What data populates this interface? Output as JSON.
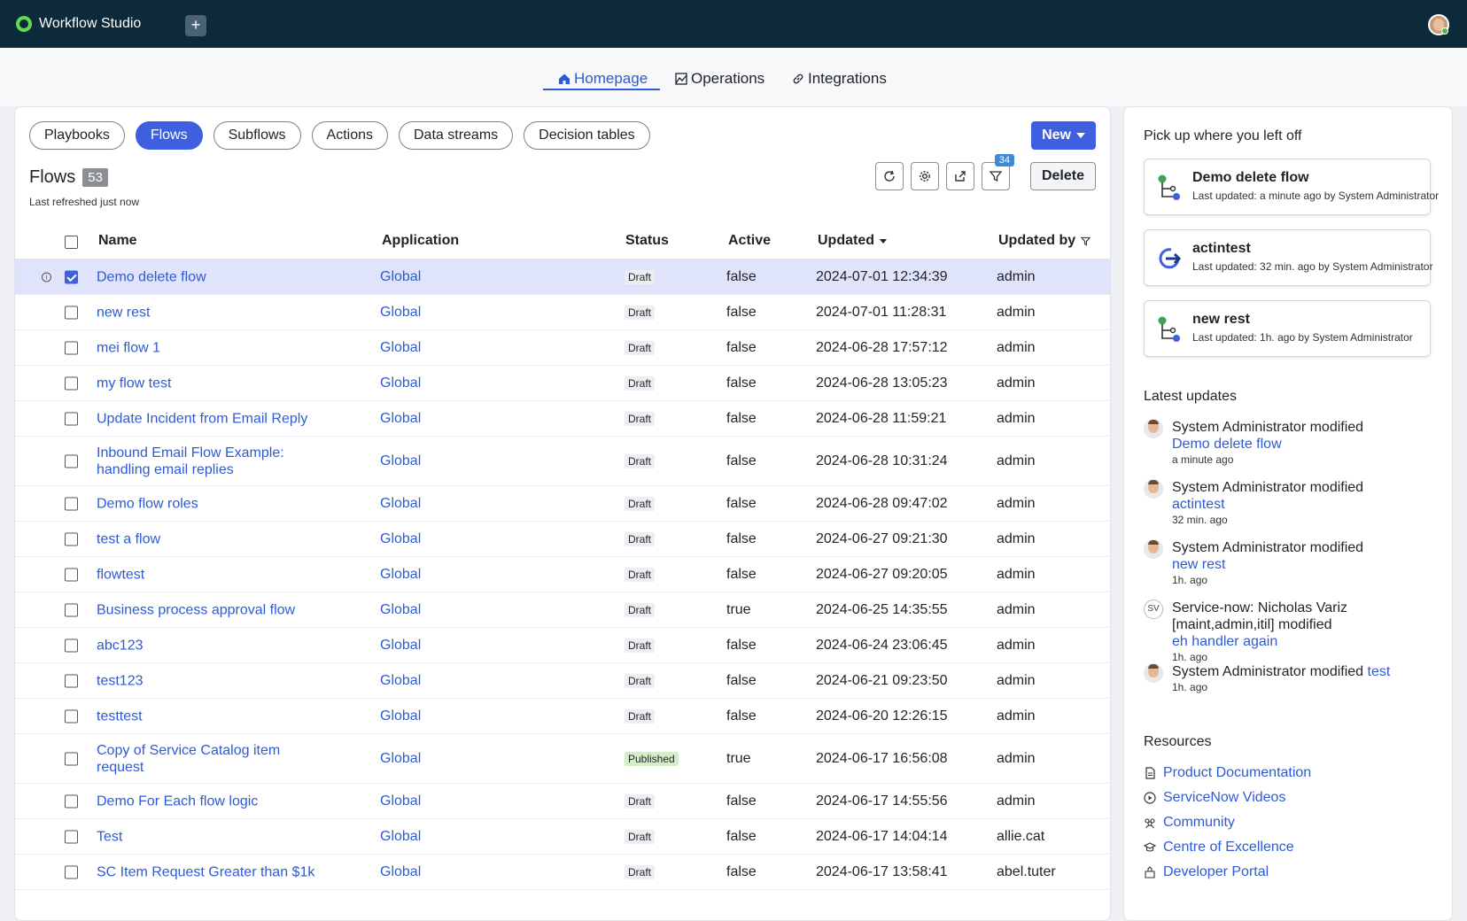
{
  "app": {
    "title": "Workflow Studio",
    "add_tab_label": "+"
  },
  "nav": {
    "tabs": [
      "Homepage",
      "Operations",
      "Integrations"
    ]
  },
  "pills": [
    "Playbooks",
    "Flows",
    "Subflows",
    "Actions",
    "Data streams",
    "Decision tables"
  ],
  "new_button_label": "New",
  "list": {
    "title": "Flows",
    "count": "53",
    "refreshed": "Last refreshed just now",
    "filter_count": "34",
    "delete_label": "Delete"
  },
  "columns": {
    "name": "Name",
    "application": "Application",
    "status": "Status",
    "active": "Active",
    "updated": "Updated",
    "updated_by": "Updated by"
  },
  "rows": [
    {
      "name": "Demo delete flow",
      "application": "Global",
      "status": "Draft",
      "active": "false",
      "updated": "2024-07-01 12:34:39",
      "updated_by": "admin"
    },
    {
      "name": "new rest",
      "application": "Global",
      "status": "Draft",
      "active": "false",
      "updated": "2024-07-01 11:28:31",
      "updated_by": "admin"
    },
    {
      "name": "mei flow 1",
      "application": "Global",
      "status": "Draft",
      "active": "false",
      "updated": "2024-06-28 17:57:12",
      "updated_by": "admin"
    },
    {
      "name": "my flow test",
      "application": "Global",
      "status": "Draft",
      "active": "false",
      "updated": "2024-06-28 13:05:23",
      "updated_by": "admin"
    },
    {
      "name": "Update Incident from Email Reply",
      "application": "Global",
      "status": "Draft",
      "active": "false",
      "updated": "2024-06-28 11:59:21",
      "updated_by": "admin"
    },
    {
      "name": "Inbound Email Flow Example: handling email replies",
      "application": "Global",
      "status": "Draft",
      "active": "false",
      "updated": "2024-06-28 10:31:24",
      "updated_by": "admin"
    },
    {
      "name": "Demo flow roles",
      "application": "Global",
      "status": "Draft",
      "active": "false",
      "updated": "2024-06-28 09:47:02",
      "updated_by": "admin"
    },
    {
      "name": "test a flow",
      "application": "Global",
      "status": "Draft",
      "active": "false",
      "updated": "2024-06-27 09:21:30",
      "updated_by": "admin"
    },
    {
      "name": "flowtest",
      "application": "Global",
      "status": "Draft",
      "active": "false",
      "updated": "2024-06-27 09:20:05",
      "updated_by": "admin"
    },
    {
      "name": "Business process approval flow",
      "application": "Global",
      "status": "Draft",
      "active": "true",
      "updated": "2024-06-25 14:35:55",
      "updated_by": "admin"
    },
    {
      "name": "abc123",
      "application": "Global",
      "status": "Draft",
      "active": "false",
      "updated": "2024-06-24 23:06:45",
      "updated_by": "admin"
    },
    {
      "name": "test123",
      "application": "Global",
      "status": "Draft",
      "active": "false",
      "updated": "2024-06-21 09:23:50",
      "updated_by": "admin"
    },
    {
      "name": "testtest",
      "application": "Global",
      "status": "Draft",
      "active": "false",
      "updated": "2024-06-20 12:26:15",
      "updated_by": "admin"
    },
    {
      "name": "Copy of Service Catalog item request",
      "application": "Global",
      "status": "Published",
      "active": "true",
      "updated": "2024-06-17 16:56:08",
      "updated_by": "admin"
    },
    {
      "name": "Demo For Each flow logic",
      "application": "Global",
      "status": "Draft",
      "active": "false",
      "updated": "2024-06-17 14:55:56",
      "updated_by": "admin"
    },
    {
      "name": "Test",
      "application": "Global",
      "status": "Draft",
      "active": "false",
      "updated": "2024-06-17 14:04:14",
      "updated_by": "allie.cat"
    },
    {
      "name": "SC Item Request Greater than $1k",
      "application": "Global",
      "status": "Draft",
      "active": "false",
      "updated": "2024-06-17 13:58:41",
      "updated_by": "abel.tuter"
    }
  ],
  "side": {
    "pickup_title": "Pick up where you left off",
    "recent": [
      {
        "name": "Demo delete flow",
        "meta": "Last updated: a minute ago by System Administrator",
        "icon": "flow-icon"
      },
      {
        "name": "actintest",
        "meta": "Last updated: 32 min. ago by System Administrator",
        "icon": "action-icon"
      },
      {
        "name": "new rest",
        "meta": "Last updated: 1h. ago by System Administrator",
        "icon": "flow-icon"
      }
    ],
    "latest_title": "Latest updates",
    "updates": [
      {
        "actor": "System Administrator modified",
        "target": "Demo delete flow",
        "time": "a minute ago",
        "initials": ""
      },
      {
        "actor": "System Administrator modified",
        "target": "actintest",
        "time": "32 min. ago",
        "initials": ""
      },
      {
        "actor": "System Administrator modified",
        "target": "new rest",
        "time": "1h. ago",
        "initials": ""
      },
      {
        "actor": "Service-now: Nicholas Variz [maint,admin,itil] modified",
        "target": "eh handler again",
        "time": "1h. ago",
        "initials": "SV"
      },
      {
        "actor": "System Administrator modified",
        "target": "test",
        "time": "1h. ago",
        "initials": ""
      }
    ],
    "resources_title": "Resources",
    "resources": [
      "Product Documentation",
      "ServiceNow Videos",
      "Community",
      "Centre of Excellence",
      "Developer Portal"
    ]
  }
}
